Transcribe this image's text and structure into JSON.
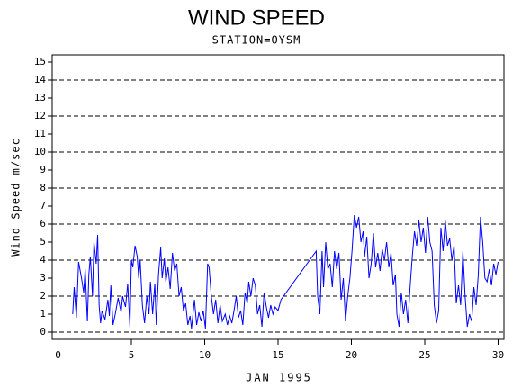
{
  "chart_data": {
    "type": "line",
    "title": "WIND SPEED",
    "subtitle": "STATION=OYSM",
    "x_label": "JAN 1995",
    "y_label": "Wind Speed m/sec",
    "color": "#0000ff",
    "xlim": [
      -0.4,
      30.4
    ],
    "ylim": [
      -0.4,
      15.4
    ],
    "xticks": [
      0,
      5,
      10,
      15,
      20,
      25,
      30
    ],
    "yticks": [
      0,
      1,
      2,
      3,
      4,
      5,
      6,
      7,
      8,
      9,
      10,
      11,
      12,
      13,
      14,
      15
    ],
    "ygrid": [
      0,
      2,
      4,
      6,
      8,
      10,
      12,
      14
    ],
    "x": [
      1.0,
      1.1,
      1.25,
      1.4,
      1.6,
      1.75,
      1.85,
      2.0,
      2.1,
      2.2,
      2.35,
      2.45,
      2.6,
      2.7,
      2.8,
      2.9,
      3.0,
      3.2,
      3.4,
      3.5,
      3.6,
      3.75,
      3.9,
      4.1,
      4.3,
      4.4,
      4.6,
      4.75,
      4.9,
      5.0,
      5.1,
      5.25,
      5.4,
      5.5,
      5.6,
      5.75,
      5.9,
      6.05,
      6.2,
      6.3,
      6.45,
      6.6,
      6.7,
      6.85,
      7.0,
      7.1,
      7.25,
      7.35,
      7.5,
      7.65,
      7.8,
      7.95,
      8.1,
      8.25,
      8.4,
      8.55,
      8.7,
      8.85,
      9.0,
      9.1,
      9.3,
      9.45,
      9.6,
      9.75,
      9.9,
      10.05,
      10.2,
      10.3,
      10.45,
      10.6,
      10.75,
      10.9,
      11.05,
      11.2,
      11.4,
      11.55,
      11.7,
      11.85,
      12.0,
      12.15,
      12.3,
      12.45,
      12.6,
      12.75,
      12.9,
      13.0,
      13.15,
      13.3,
      13.45,
      13.6,
      13.75,
      13.9,
      14.05,
      14.2,
      14.35,
      14.5,
      14.65,
      14.8,
      15.0,
      15.2,
      17.6,
      17.7,
      17.85,
      18.0,
      18.1,
      18.25,
      18.4,
      18.55,
      18.7,
      18.85,
      19.0,
      19.15,
      19.3,
      19.45,
      19.6,
      19.75,
      19.9,
      20.05,
      20.2,
      20.35,
      20.5,
      20.65,
      20.8,
      20.9,
      21.05,
      21.2,
      21.35,
      21.5,
      21.65,
      21.8,
      21.95,
      22.1,
      22.25,
      22.4,
      22.55,
      22.7,
      22.85,
      23.0,
      23.1,
      23.25,
      23.4,
      23.55,
      23.7,
      23.85,
      24.0,
      24.15,
      24.3,
      24.45,
      24.6,
      24.75,
      24.9,
      25.05,
      25.2,
      25.35,
      25.5,
      25.65,
      25.8,
      25.95,
      26.1,
      26.25,
      26.4,
      26.55,
      26.7,
      26.85,
      27.0,
      27.15,
      27.3,
      27.45,
      27.6,
      27.75,
      27.9,
      28.05,
      28.2,
      28.35,
      28.5,
      28.65,
      28.8,
      28.95,
      29.1,
      29.25,
      29.4,
      29.55,
      29.7,
      29.85,
      30.0
    ],
    "values": [
      1.0,
      2.5,
      0.8,
      3.9,
      3.0,
      2.2,
      3.5,
      0.6,
      3.2,
      4.2,
      2.0,
      5.0,
      3.8,
      5.4,
      1.5,
      0.5,
      1.2,
      0.7,
      1.8,
      0.9,
      2.6,
      0.4,
      1.0,
      1.9,
      1.1,
      2.0,
      1.4,
      2.7,
      0.3,
      4.0,
      3.6,
      4.8,
      4.2,
      3.0,
      4.0,
      1.5,
      0.5,
      2.0,
      1.0,
      2.8,
      1.0,
      2.7,
      0.4,
      3.2,
      4.7,
      3.0,
      4.1,
      2.8,
      3.6,
      2.4,
      4.4,
      3.4,
      3.8,
      2.0,
      2.5,
      1.2,
      1.6,
      0.4,
      0.9,
      0.2,
      1.8,
      0.4,
      1.1,
      0.6,
      1.2,
      0.2,
      3.8,
      3.6,
      2.0,
      1.0,
      1.8,
      0.5,
      1.5,
      0.6,
      1.0,
      0.4,
      0.9,
      0.5,
      1.2,
      2.0,
      0.8,
      1.2,
      0.4,
      2.2,
      1.6,
      2.8,
      2.0,
      3.0,
      2.6,
      1.0,
      1.5,
      0.3,
      2.2,
      1.4,
      0.8,
      1.5,
      1.0,
      1.4,
      1.2,
      1.8,
      4.5,
      2.0,
      1.0,
      4.5,
      2.5,
      5.0,
      3.5,
      3.8,
      2.5,
      4.5,
      3.5,
      4.4,
      1.8,
      3.0,
      0.6,
      2.0,
      3.0,
      4.6,
      6.5,
      5.8,
      6.4,
      5.0,
      5.6,
      4.2,
      5.3,
      3.0,
      3.8,
      5.5,
      3.6,
      4.4,
      3.4,
      4.6,
      4.0,
      5.0,
      3.6,
      4.4,
      2.6,
      3.2,
      1.0,
      0.3,
      2.2,
      1.0,
      1.8,
      0.5,
      2.5,
      4.2,
      5.6,
      4.8,
      6.2,
      5.0,
      5.8,
      4.4,
      6.4,
      5.0,
      4.5,
      1.5,
      0.5,
      1.2,
      5.8,
      4.5,
      6.2,
      4.8,
      5.2,
      4.0,
      4.8,
      1.6,
      2.6,
      1.5,
      4.5,
      2.0,
      0.3,
      1.0,
      0.6,
      2.5,
      1.5,
      3.2,
      6.4,
      5.0,
      3.0,
      2.8,
      3.5,
      2.6,
      3.8,
      3.2,
      3.9
    ]
  }
}
